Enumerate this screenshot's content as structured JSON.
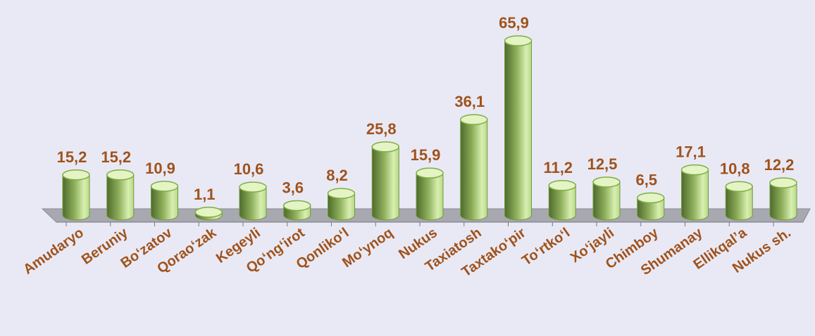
{
  "chart_data": {
    "type": "bar",
    "categories": [
      "Amudaryo",
      "Beruniy",
      "Bo‘zatov",
      "Qorao‘zak",
      "Kegeyli",
      "Qo‘ng‘irot",
      "Qonliko‘l",
      "Mo‘ynoq",
      "Nukus",
      "Taxiatosh",
      "Taxtako‘pir",
      "To‘rtko‘l",
      "Xo‘jayli",
      "Chimboy",
      "Shumanay",
      "Ellikqal’a",
      "Nukus sh."
    ],
    "values": [
      15.2,
      15.2,
      10.9,
      1.1,
      10.6,
      3.6,
      8.2,
      25.8,
      15.9,
      36.1,
      65.9,
      11.2,
      12.5,
      6.5,
      17.1,
      10.8,
      12.2
    ],
    "value_labels": [
      "15,2",
      "15,2",
      "10,9",
      "1,1",
      "10,6",
      "3,6",
      "8,2",
      "25,8",
      "15,9",
      "36,1",
      "65,9",
      "11,2",
      "12,5",
      "6,5",
      "17,1",
      "10,8",
      "12,2"
    ],
    "color": "#9ccc5c"
  }
}
